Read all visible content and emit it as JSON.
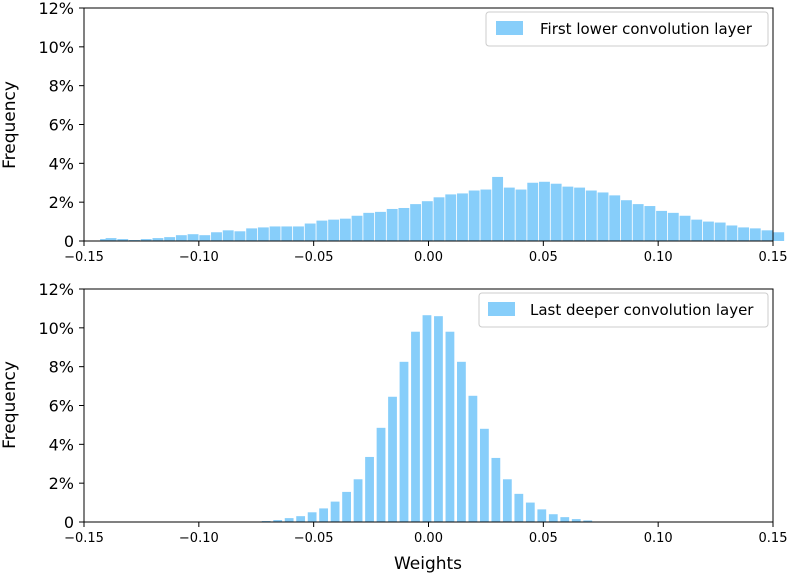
{
  "chart_data": [
    {
      "type": "bar",
      "id": "top",
      "legend": "First lower convolution layer",
      "legend_position": "top-right",
      "ylabel": "Frequency",
      "xlabel": "",
      "xlim": [
        -0.15,
        0.15
      ],
      "ylim": [
        0,
        12
      ],
      "y_unit": "%",
      "bin_width": 0.00526,
      "color": "#87CEFA",
      "x_ticks": [
        -0.15,
        -0.1,
        -0.05,
        0.0,
        0.05,
        0.1,
        0.15
      ],
      "x_tick_labels": [
        "−0.15",
        "−0.10",
        "−0.05",
        "0.00",
        "0.05",
        "0.10",
        "0.15"
      ],
      "y_ticks": [
        0,
        2,
        4,
        6,
        8,
        10,
        12
      ],
      "y_tick_labels": [
        "0",
        "2%",
        "4%",
        "6%",
        "8%",
        "10%",
        "12%"
      ],
      "bins": [
        [
          -0.1432,
          0.1
        ],
        [
          -0.1408,
          0.15
        ],
        [
          -0.1357,
          0.1
        ],
        [
          -0.1306,
          0.05
        ],
        [
          -0.1255,
          0.1
        ],
        [
          -0.1204,
          0.15
        ],
        [
          -0.1153,
          0.2
        ],
        [
          -0.1102,
          0.3
        ],
        [
          -0.1051,
          0.35
        ],
        [
          -0.1,
          0.3
        ],
        [
          -0.0949,
          0.45
        ],
        [
          -0.0898,
          0.55
        ],
        [
          -0.0847,
          0.5
        ],
        [
          -0.0796,
          0.65
        ],
        [
          -0.0745,
          0.7
        ],
        [
          -0.0694,
          0.75
        ],
        [
          -0.0643,
          0.75
        ],
        [
          -0.0592,
          0.75
        ],
        [
          -0.0541,
          0.9
        ],
        [
          -0.049,
          1.05
        ],
        [
          -0.0439,
          1.1
        ],
        [
          -0.0388,
          1.15
        ],
        [
          -0.0337,
          1.3
        ],
        [
          -0.0286,
          1.45
        ],
        [
          -0.0235,
          1.5
        ],
        [
          -0.0184,
          1.65
        ],
        [
          -0.0133,
          1.7
        ],
        [
          -0.0082,
          1.9
        ],
        [
          -0.0031,
          2.05
        ],
        [
          0.002,
          2.25
        ],
        [
          0.0071,
          2.4
        ],
        [
          0.0122,
          2.45
        ],
        [
          0.0173,
          2.6
        ],
        [
          0.0224,
          2.65
        ],
        [
          0.0275,
          3.3
        ],
        [
          0.0326,
          2.75
        ],
        [
          0.0377,
          2.65
        ],
        [
          0.0428,
          3.0
        ],
        [
          0.0479,
          3.05
        ],
        [
          0.053,
          2.95
        ],
        [
          0.0581,
          2.8
        ],
        [
          0.0632,
          2.75
        ],
        [
          0.0683,
          2.6
        ],
        [
          0.0734,
          2.5
        ],
        [
          0.0785,
          2.35
        ],
        [
          0.0836,
          2.1
        ],
        [
          0.0887,
          1.9
        ],
        [
          0.0938,
          1.8
        ],
        [
          0.0989,
          1.55
        ],
        [
          0.104,
          1.45
        ],
        [
          0.1091,
          1.3
        ],
        [
          0.1142,
          1.1
        ],
        [
          0.1193,
          1.0
        ],
        [
          0.1244,
          0.95
        ],
        [
          0.1295,
          0.8
        ],
        [
          0.1346,
          0.7
        ],
        [
          0.1397,
          0.65
        ],
        [
          0.1448,
          0.55
        ],
        [
          0.1499,
          0.45
        ]
      ]
    },
    {
      "type": "bar",
      "id": "bottom",
      "legend": "Last deeper convolution layer",
      "legend_position": "top-right",
      "ylabel": "Frequency",
      "xlabel": "Weights",
      "xlim": [
        -0.15,
        0.15
      ],
      "ylim": [
        0,
        12
      ],
      "y_unit": "%",
      "bin_width": 0.00435,
      "color": "#87CEFA",
      "x_ticks": [
        -0.15,
        -0.1,
        -0.05,
        0.0,
        0.05,
        0.1,
        0.15
      ],
      "x_tick_labels": [
        "−0.15",
        "−0.10",
        "−0.05",
        "0.00",
        "0.05",
        "0.10",
        "0.15"
      ],
      "y_ticks": [
        0,
        2,
        4,
        6,
        8,
        10,
        12
      ],
      "y_tick_labels": [
        "0",
        "2%",
        "4%",
        "6%",
        "8%",
        "10%",
        "12%"
      ],
      "bins": [
        [
          -0.0778,
          0.02
        ],
        [
          -0.0728,
          0.05
        ],
        [
          -0.0678,
          0.1
        ],
        [
          -0.0628,
          0.2
        ],
        [
          -0.0578,
          0.3
        ],
        [
          -0.0528,
          0.5
        ],
        [
          -0.0478,
          0.7
        ],
        [
          -0.0428,
          1.05
        ],
        [
          -0.0378,
          1.55
        ],
        [
          -0.0328,
          2.2
        ],
        [
          -0.0278,
          3.35
        ],
        [
          -0.0228,
          4.85
        ],
        [
          -0.0178,
          6.45
        ],
        [
          -0.0128,
          8.25
        ],
        [
          -0.0078,
          9.8
        ],
        [
          -0.0028,
          10.65
        ],
        [
          0.0022,
          10.6
        ],
        [
          0.0072,
          9.8
        ],
        [
          0.0122,
          8.25
        ],
        [
          0.0172,
          6.5
        ],
        [
          0.0222,
          4.8
        ],
        [
          0.0272,
          3.3
        ],
        [
          0.0322,
          2.2
        ],
        [
          0.0372,
          1.45
        ],
        [
          0.0422,
          1.0
        ],
        [
          0.0472,
          0.65
        ],
        [
          0.0522,
          0.4
        ],
        [
          0.0572,
          0.25
        ],
        [
          0.0622,
          0.15
        ],
        [
          0.0672,
          0.08
        ]
      ]
    }
  ]
}
